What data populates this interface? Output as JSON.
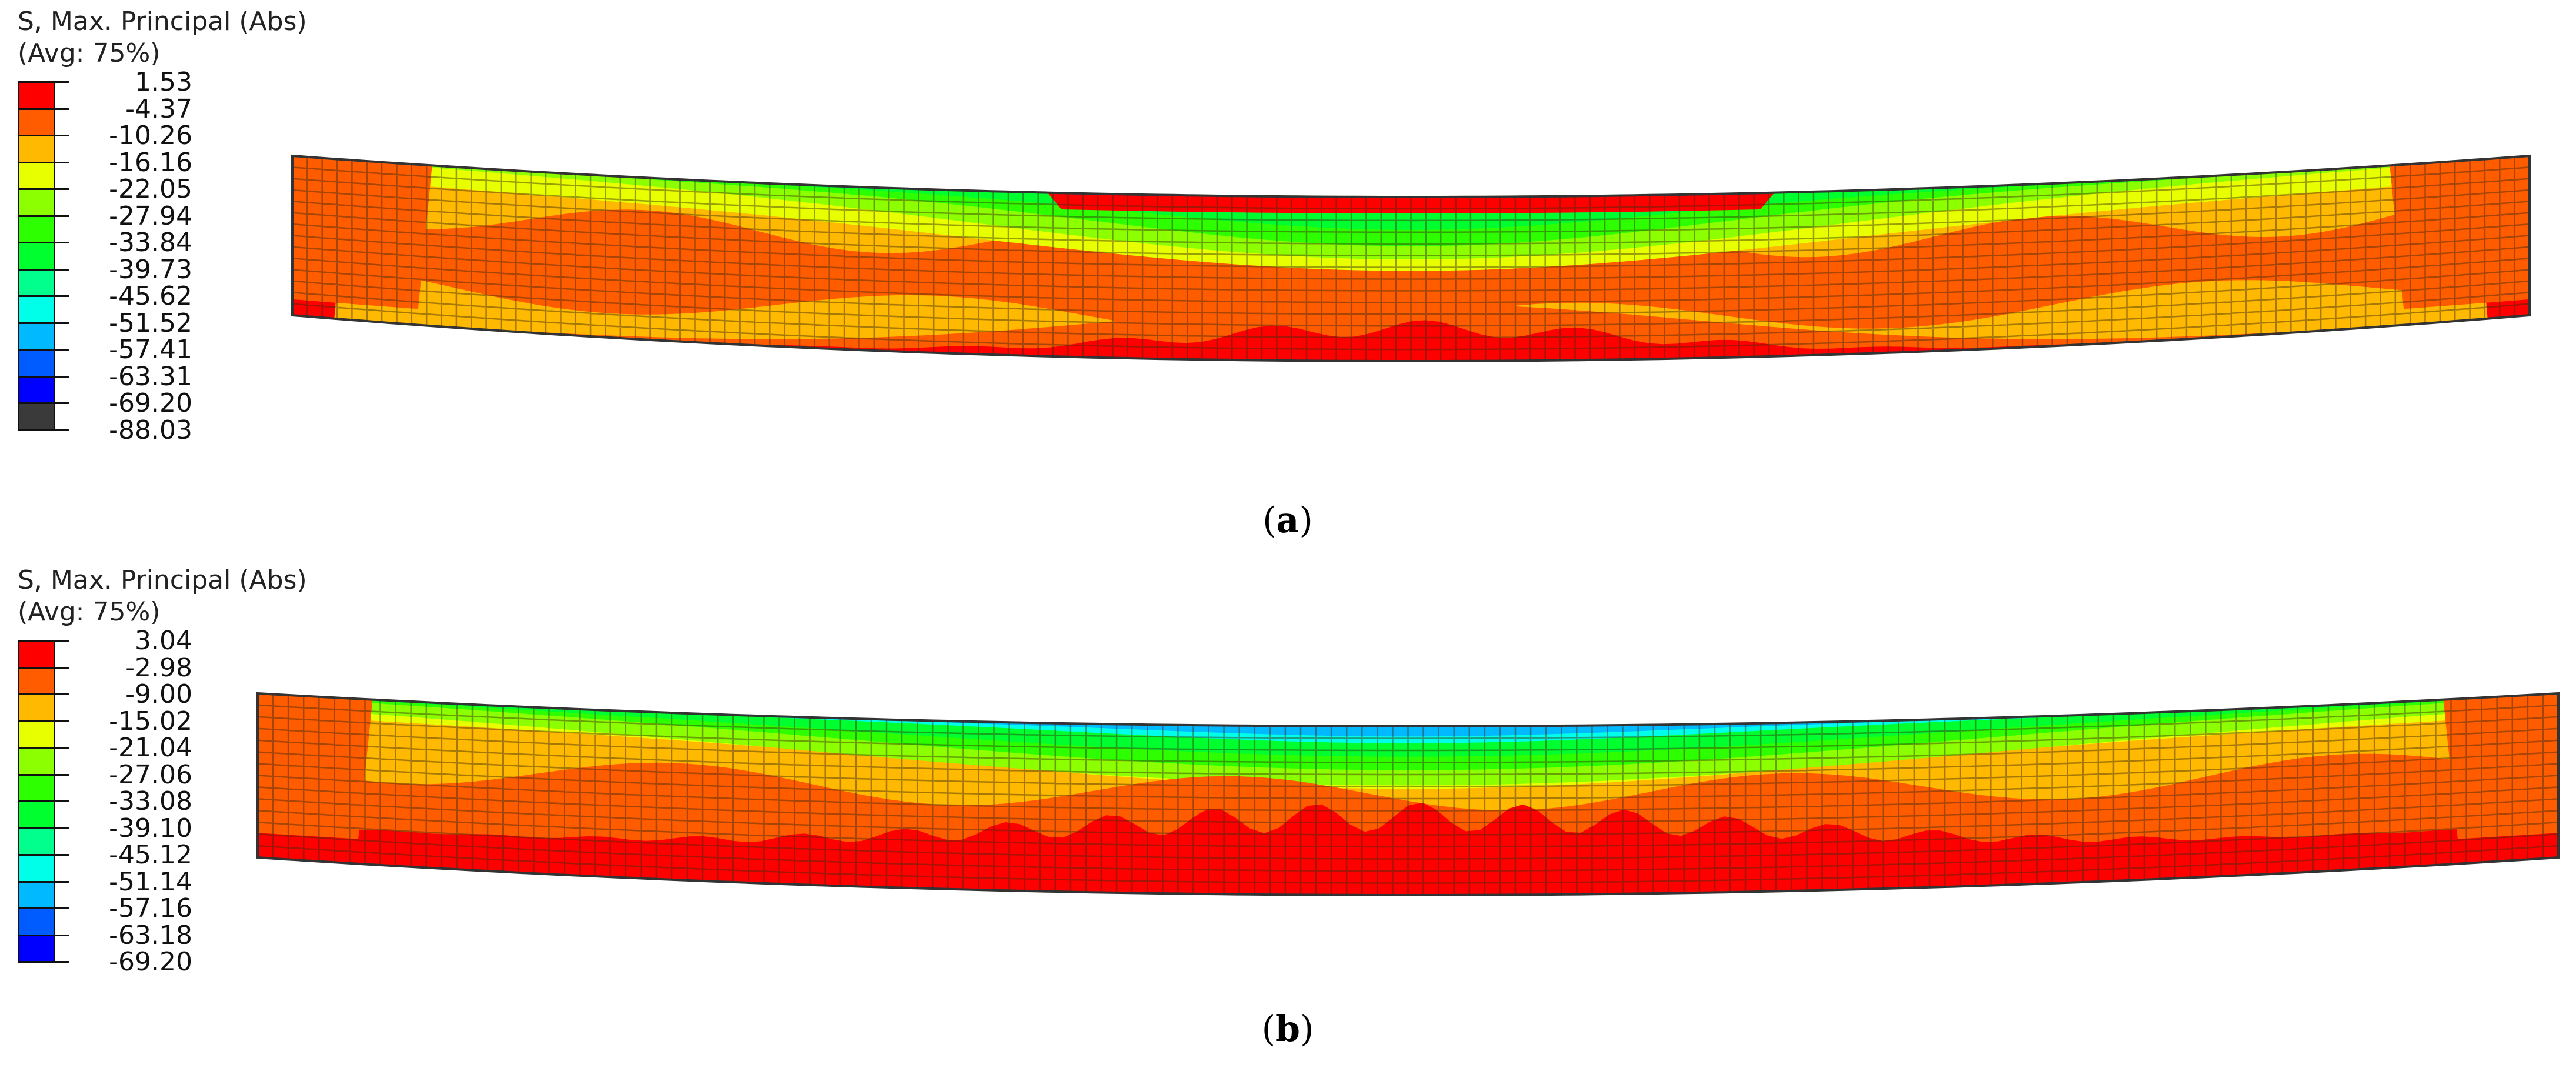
{
  "panels": [
    {
      "id": "a",
      "caption_open": "(",
      "caption_letter": "a",
      "caption_close": ")",
      "legend": {
        "title_line1": "S, Max. Principal (Abs)",
        "title_line2": "(Avg: 75%)",
        "values": [
          "1.53",
          "-4.37",
          "-10.26",
          "-16.16",
          "-22.05",
          "-27.94",
          "-33.84",
          "-39.73",
          "-45.62",
          "-51.52",
          "-57.41",
          "-63.31",
          "-69.20",
          "-88.03"
        ],
        "colors": [
          "#ff0000",
          "#ff5c00",
          "#ffb900",
          "#e8ff00",
          "#8cff00",
          "#2eff00",
          "#00ff2e",
          "#00ff8c",
          "#00ffe8",
          "#00b9ff",
          "#005cff",
          "#0000ff",
          "#3a3a3a"
        ]
      }
    },
    {
      "id": "b",
      "caption_open": "(",
      "caption_letter": "b",
      "caption_close": ")",
      "legend": {
        "title_line1": "S, Max. Principal (Abs)",
        "title_line2": "(Avg: 75%)",
        "values": [
          "3.04",
          "-2.98",
          "-9.00",
          "-15.02",
          "-21.04",
          "-27.06",
          "-33.08",
          "-39.10",
          "-45.12",
          "-51.14",
          "-57.16",
          "-63.18",
          "-69.20"
        ],
        "colors": [
          "#ff0000",
          "#ff5c00",
          "#ffb900",
          "#e8ff00",
          "#8cff00",
          "#2eff00",
          "#00ff2e",
          "#00ff8c",
          "#00ffe8",
          "#00b9ff",
          "#005cff",
          "#0000ff"
        ]
      }
    }
  ]
}
